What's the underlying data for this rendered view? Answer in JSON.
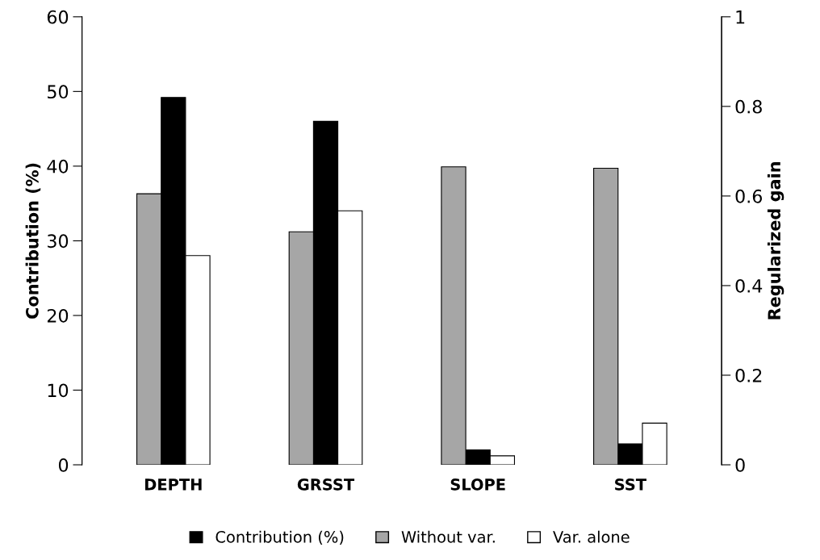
{
  "chart_data": {
    "type": "bar",
    "ylabel": "Contribution (%)",
    "y2label": "Regularized gain",
    "categories": [
      "DEPTH",
      "GRSST",
      "SLOPE",
      "SST"
    ],
    "series": [
      {
        "name": "Without var.",
        "color": "#a6a6a6",
        "axis": "y2",
        "values": [
          0.605,
          0.52,
          0.665,
          0.662
        ]
      },
      {
        "name": "Contribution (%)",
        "color": "#000000",
        "values": [
          49.2,
          46.0,
          2.0,
          2.8
        ]
      },
      {
        "name": "Var. alone",
        "color": "#ffffff",
        "axis": "y2",
        "values": [
          0.467,
          0.567,
          0.02,
          0.093
        ]
      }
    ],
    "ylim": [
      0,
      60
    ],
    "yticks": [
      0,
      10,
      20,
      30,
      40,
      50,
      60
    ],
    "y2lim": [
      0,
      1
    ],
    "y2ticks": [
      0,
      {
        "value": 0.2,
        "label": "0.2"
      },
      {
        "value": 0.4,
        "label": "0.4"
      },
      {
        "value": 0.6,
        "label": "0.6"
      },
      {
        "value": 0.8,
        "label": "0.8"
      },
      1
    ],
    "legend": "bottom",
    "grid": false
  }
}
